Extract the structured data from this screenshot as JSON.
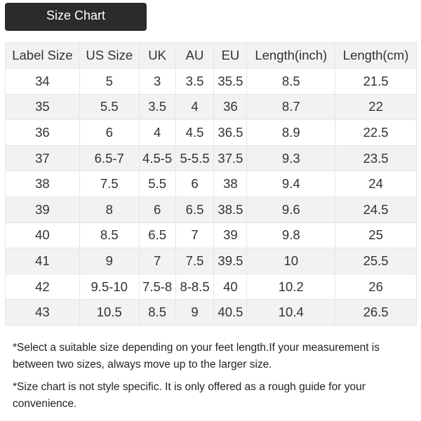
{
  "title": "Size Chart",
  "table": {
    "headers": [
      "Label Size",
      "US Size",
      "UK",
      "AU",
      "EU",
      "Length(inch)",
      "Length(cm)"
    ],
    "rows": [
      [
        "34",
        "5",
        "3",
        "3.5",
        "35.5",
        "8.5",
        "21.5"
      ],
      [
        "35",
        "5.5",
        "3.5",
        "4",
        "36",
        "8.7",
        "22"
      ],
      [
        "36",
        "6",
        "4",
        "4.5",
        "36.5",
        "8.9",
        "22.5"
      ],
      [
        "37",
        "6.5-7",
        "4.5-5",
        "5-5.5",
        "37.5",
        "9.3",
        "23.5"
      ],
      [
        "38",
        "7.5",
        "5.5",
        "6",
        "38",
        "9.4",
        "24"
      ],
      [
        "39",
        "8",
        "6",
        "6.5",
        "38.5",
        "9.6",
        "24.5"
      ],
      [
        "40",
        "8.5",
        "6.5",
        "7",
        "39",
        "9.8",
        "25"
      ],
      [
        "41",
        "9",
        "7",
        "7.5",
        "39.5",
        "10",
        "25.5"
      ],
      [
        "42",
        "9.5-10",
        "7.5-8",
        "8-8.5",
        "40",
        "10.2",
        "26"
      ],
      [
        "43",
        "10.5",
        "8.5",
        "9",
        "40.5",
        "10.4",
        "26.5"
      ]
    ]
  },
  "notes": [
    "*Select a suitable size depending on your feet length.If your measurement is between two sizes, always move up to the larger size.",
    "*Size chart is not style specific. It is only offered as a rough guide for your convenience."
  ]
}
